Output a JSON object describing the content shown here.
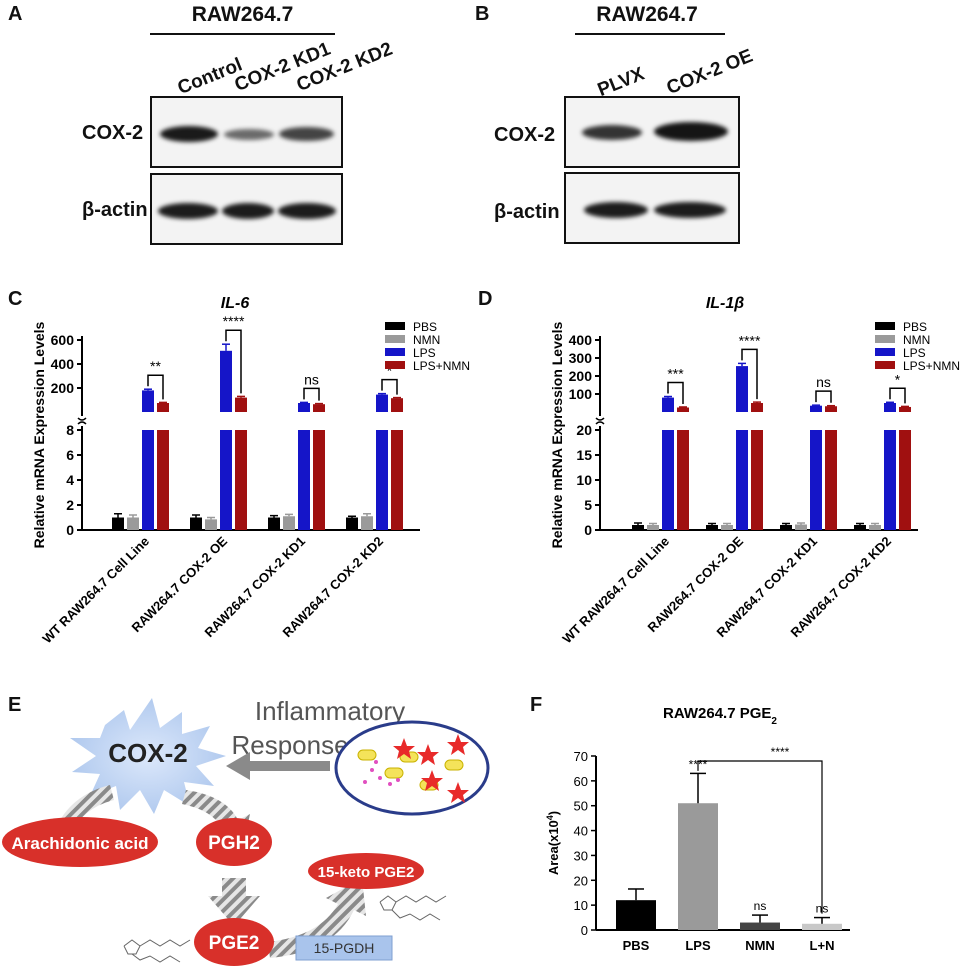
{
  "panels": {
    "A": {
      "letter": "A",
      "title": "RAW264.7",
      "lanes": [
        "Control",
        "COX-2 KD1",
        "COX-2 KD2"
      ],
      "rows": [
        "COX-2",
        "β-actin"
      ]
    },
    "B": {
      "letter": "B",
      "title": "RAW264.7",
      "lanes": [
        "PLVX",
        "COX-2 OE"
      ],
      "rows": [
        "COX-2",
        "β-actin"
      ]
    },
    "E": {
      "letter": "E",
      "inflammatory": "Inflammatory",
      "response": "Response",
      "cox2": "COX-2",
      "arachidonic": "Arachidonic acid",
      "pgh2": "PGH2",
      "pge2": "PGE2",
      "keto": "15-keto PGE2",
      "pgdh": "15-PGDH"
    }
  },
  "chart_data": [
    {
      "panel": "C",
      "type": "bar",
      "title": "IL-6",
      "ylabel": "Relative mRNA Expression Levels",
      "categories": [
        "WT RAW264.7 Cell Line",
        "RAW264.7 COX-2 OE",
        "RAW264.7 COX-2 KD1",
        "RAW264.7 COX-2 KD2"
      ],
      "series": [
        {
          "name": "PBS",
          "color": "#000000",
          "values": [
            1.0,
            1.0,
            1.0,
            1.0
          ],
          "errors": [
            0.3,
            0.2,
            0.15,
            0.1
          ]
        },
        {
          "name": "NMN",
          "color": "#9a9a9a",
          "values": [
            1.0,
            0.85,
            1.1,
            1.1
          ],
          "errors": [
            0.2,
            0.15,
            0.15,
            0.2
          ]
        },
        {
          "name": "LPS",
          "color": "#1515c8",
          "values": [
            180,
            510,
            75,
            145
          ],
          "errors": [
            10,
            55,
            5,
            8
          ]
        },
        {
          "name": "LPS+NMN",
          "color": "#a01010",
          "values": [
            75,
            120,
            65,
            115
          ],
          "errors": [
            5,
            10,
            5,
            5
          ]
        }
      ],
      "broken_axis": {
        "lower": [
          0,
          8
        ],
        "upper": [
          0,
          600
        ]
      },
      "lower_ticks": [
        0,
        2,
        4,
        6,
        8
      ],
      "upper_ticks": [
        200,
        400,
        600
      ],
      "significance": [
        "**",
        "****",
        "ns",
        "*"
      ]
    },
    {
      "panel": "D",
      "type": "bar",
      "title": "IL-1β",
      "ylabel": "Relative mRNA Expression Levels",
      "categories": [
        "WT RAW264.7 Cell Line",
        "RAW264.7 COX-2 OE",
        "RAW264.7 COX-2 KD1",
        "RAW264.7 COX-2 KD2"
      ],
      "series": [
        {
          "name": "PBS",
          "color": "#000000",
          "values": [
            1.0,
            1.0,
            1.0,
            1.0
          ],
          "errors": [
            0.4,
            0.3,
            0.3,
            0.3
          ]
        },
        {
          "name": "NMN",
          "color": "#9a9a9a",
          "values": [
            1.0,
            1.0,
            1.1,
            1.0
          ],
          "errors": [
            0.3,
            0.3,
            0.3,
            0.3
          ]
        },
        {
          "name": "LPS",
          "color": "#1515c8",
          "values": [
            80,
            255,
            35,
            50
          ],
          "errors": [
            6,
            15,
            3,
            4
          ]
        },
        {
          "name": "LPS+NMN",
          "color": "#a01010",
          "values": [
            25,
            50,
            32,
            28
          ],
          "errors": [
            3,
            5,
            3,
            3
          ]
        }
      ],
      "broken_axis": {
        "lower": [
          0,
          20
        ],
        "upper": [
          0,
          400
        ]
      },
      "lower_ticks": [
        0,
        5,
        10,
        15,
        20
      ],
      "upper_ticks": [
        100,
        200,
        300,
        400
      ],
      "significance": [
        "***",
        "****",
        "ns",
        "*"
      ]
    },
    {
      "panel": "F",
      "type": "bar",
      "title": "RAW264.7 PGE",
      "title_sub": "2",
      "ylabel": "Area(x10",
      "ylabel_sup": "4",
      "ylabel_end": ")",
      "categories": [
        "PBS",
        "LPS",
        "NMN",
        "L+N"
      ],
      "values": [
        12,
        51,
        3,
        2.5
      ],
      "errors": [
        4.5,
        12,
        3,
        2.5
      ],
      "colors": [
        "#000000",
        "#9a9a9a",
        "#444444",
        "#c8c8c8"
      ],
      "ylim": [
        0,
        70
      ],
      "yticks": [
        0,
        10,
        20,
        30,
        40,
        50,
        60,
        70
      ],
      "annotations": [
        "",
        "****",
        "ns",
        "ns"
      ],
      "comparison": "****"
    }
  ]
}
